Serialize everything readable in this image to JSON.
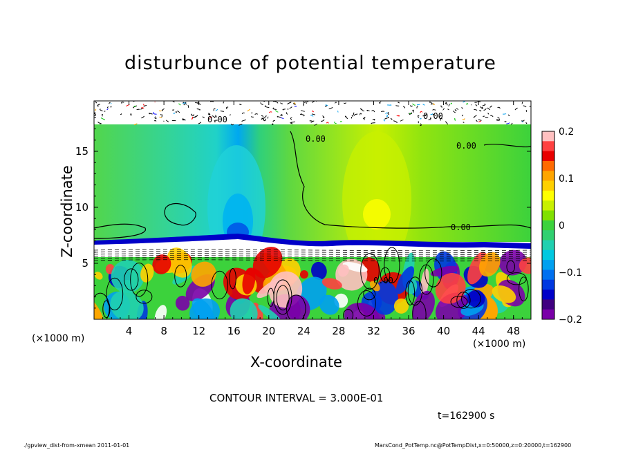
{
  "chart_data": {
    "type": "heatmap",
    "title": "disturbunce of potential temperature",
    "xlabel": "X-coordinate",
    "ylabel": "Z-coordinate",
    "x_units": "(×1000 m)",
    "y_units": "(×1000 m)",
    "xlim": [
      0,
      50
    ],
    "ylim": [
      0,
      19.5
    ],
    "x_ticks": [
      4,
      8,
      12,
      16,
      20,
      24,
      28,
      32,
      36,
      40,
      44,
      48
    ],
    "y_ticks": [
      5,
      10,
      15
    ],
    "colorbar": {
      "range": [
        -0.2,
        0.2
      ],
      "tick_values": [
        0.2,
        0.1,
        0,
        -0.1,
        -0.2
      ],
      "tick_labels": [
        "0.2",
        "0.1",
        "0",
        "−0.1",
        "−0.2"
      ],
      "colors": [
        "#ffc0c0",
        "#ff4040",
        "#e80000",
        "#ff6a00",
        "#ffa500",
        "#ffd000",
        "#ffff00",
        "#c8f000",
        "#80e000",
        "#3cd23c",
        "#30d070",
        "#20d0b0",
        "#00c8e0",
        "#00a0f0",
        "#0070f0",
        "#0038e0",
        "#0000c8",
        "#400080",
        "#7a00a8"
      ]
    },
    "contour_labels": [
      "0.00",
      "0.00",
      "0.00",
      "0.00",
      "0.00",
      "0.00"
    ],
    "contour_interval_text": "CONTOUR INTERVAL = 3.000E-01",
    "time_text": "t=162900 s"
  },
  "footer": {
    "left": "./gpview_dist-from-xmean  2011-01-01",
    "right": "MarsCond_PotTemp.nc@PotTempDist,x=0:50000,z=0:20000,t=162900"
  }
}
